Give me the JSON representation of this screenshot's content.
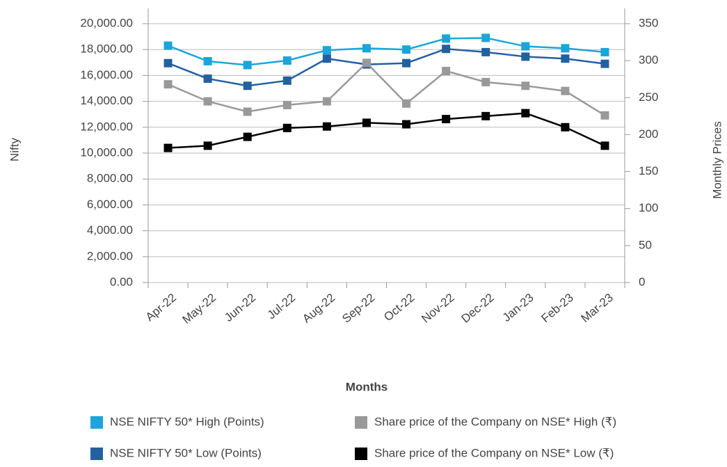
{
  "chart_data": {
    "type": "line",
    "x_label": "Months",
    "y_label": "Nifty",
    "y2_label": "Monthly Prices",
    "categories": [
      "Apr-22",
      "May-22",
      "Jun-22",
      "Jul-22",
      "Aug-22",
      "Sep-22",
      "Oct-22",
      "Nov-22",
      "Dec-22",
      "Jan-23",
      "Feb-23",
      "Mar-23"
    ],
    "series": [
      {
        "name": "NSE NIFTY 50* High (Points)",
        "color": "#1aa6d8",
        "values": [
          18300,
          17100,
          16800,
          17150,
          17950,
          18100,
          18000,
          18850,
          18900,
          18250,
          18100,
          17800
        ]
      },
      {
        "name": "NSE NIFTY 50* Low (Points)",
        "color": "#2360a0",
        "values": [
          16950,
          15750,
          15200,
          15600,
          17300,
          16850,
          16950,
          18050,
          17800,
          17450,
          17300,
          16900
        ]
      },
      {
        "name": "Share price of the Company on NSE* High (₹)",
        "color": "#999999",
        "axis": "y2",
        "values": [
          268,
          245,
          231,
          240,
          245,
          297,
          242,
          286,
          271,
          266,
          259,
          226
        ]
      },
      {
        "name": "Share price of the Company on NSE* Low (₹)",
        "color": "#000000",
        "axis": "y2",
        "values": [
          182,
          185,
          197,
          209,
          211,
          216,
          214,
          221,
          225,
          229,
          210,
          185
        ]
      }
    ],
    "ylim": [
      0,
      20000
    ],
    "yticks": [
      {
        "value": 0,
        "label": "0.00"
      },
      {
        "value": 2000,
        "label": "2,000.00"
      },
      {
        "value": 4000,
        "label": "4,000.00"
      },
      {
        "value": 6000,
        "label": "6,000.00"
      },
      {
        "value": 8000,
        "label": "8,000.00"
      },
      {
        "value": 10000,
        "label": "10,000.00"
      },
      {
        "value": 12000,
        "label": "12,000.00"
      },
      {
        "value": 14000,
        "label": "14,000.00"
      },
      {
        "value": 16000,
        "label": "16,000.00"
      },
      {
        "value": 18000,
        "label": "18,000.00"
      },
      {
        "value": 20000,
        "label": "20,000.00"
      }
    ],
    "y2lim": [
      0,
      350
    ],
    "y2ticks": [
      0,
      50,
      100,
      150,
      200,
      250,
      300,
      350
    ],
    "grid": true
  }
}
